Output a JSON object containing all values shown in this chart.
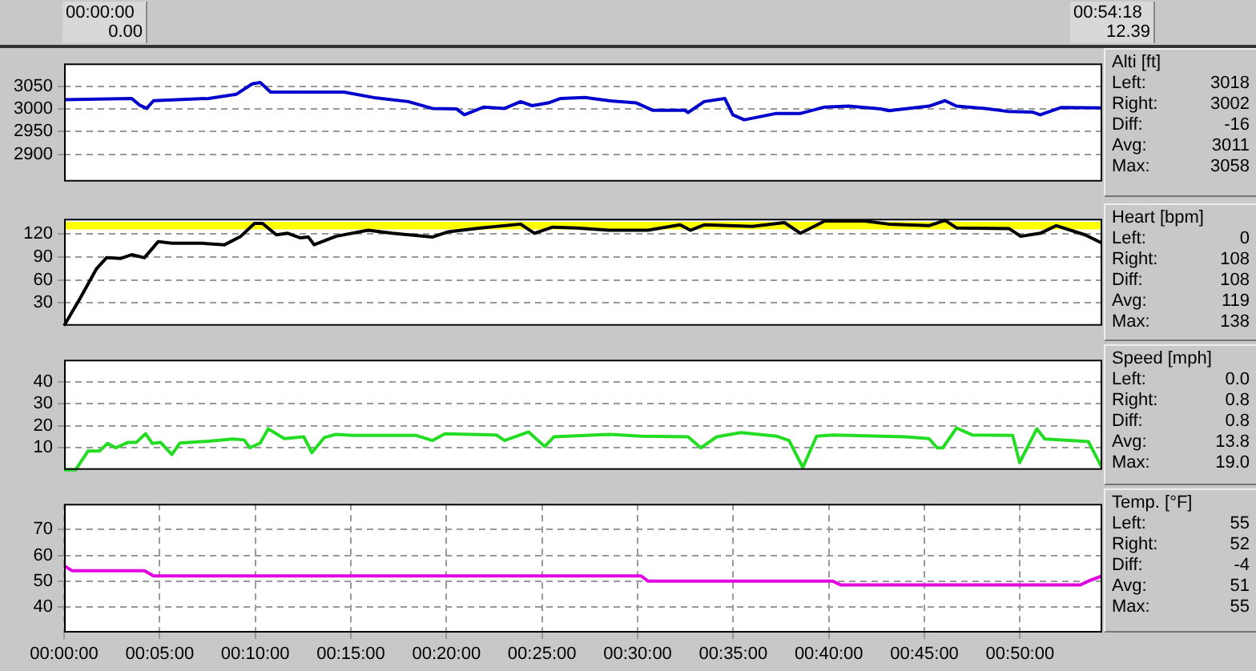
{
  "chart_data": [
    {
      "type": "other",
      "annotations": [
        "00:00:00",
        "0.00",
        "00:54:18",
        "12.39"
      ]
    },
    {
      "type": "line",
      "ylabel": "Alti [ft]",
      "color": "#0000cc",
      "grid": true,
      "tick_labels": "y",
      "xlim": [
        0,
        0.905
      ],
      "ylim": [
        2840,
        3100
      ],
      "yticks": [
        2900,
        2950,
        3000,
        3050
      ],
      "xticks": [
        {
          "value": 0,
          "label": null
        },
        {
          "value": 0.083333,
          "label": null
        },
        {
          "value": 0.166667,
          "label": null
        },
        {
          "value": 0.25,
          "label": null
        },
        {
          "value": 0.333333,
          "label": null
        },
        {
          "value": 0.416667,
          "label": null
        },
        {
          "value": 0.5,
          "label": null
        },
        {
          "value": 0.583333,
          "label": null
        },
        {
          "value": 0.666667,
          "label": null
        },
        {
          "value": 0.75,
          "label": null
        },
        {
          "value": 0.833333,
          "label": null
        }
      ],
      "x": [
        0,
        0.059,
        0.066,
        0.072,
        0.078,
        0.126,
        0.15,
        0.164,
        0.171,
        0.18,
        0.209,
        0.244,
        0.272,
        0.3,
        0.321,
        0.342,
        0.349,
        0.366,
        0.384,
        0.398,
        0.408,
        0.422,
        0.433,
        0.454,
        0.475,
        0.499,
        0.513,
        0.541,
        0.544,
        0.558,
        0.576,
        0.583,
        0.593,
        0.621,
        0.642,
        0.663,
        0.684,
        0.712,
        0.719,
        0.754,
        0.768,
        0.778,
        0.803,
        0.824,
        0.844,
        0.851,
        0.869,
        0.905
      ],
      "values": [
        3020,
        3023,
        3008,
        3001,
        3018,
        3023,
        3032,
        3055,
        3058,
        3037,
        3037,
        3037,
        3024,
        3016,
        3001,
        3000,
        2987,
        3004,
        3001,
        3016,
        3007,
        3013,
        3023,
        3025,
        3018,
        3013,
        2997,
        2997,
        2992,
        3016,
        3023,
        2987,
        2976,
        2990,
        2990,
        3004,
        3006,
        3000,
        2996,
        3006,
        3018,
        3006,
        3001,
        2994,
        2993,
        2987,
        3003,
        3002
      ],
      "annotations": [
        "Left:",
        "3018",
        "Right:",
        "3002",
        "Diff:",
        "-16",
        "Avg:",
        "3011",
        "Max:",
        "3058"
      ]
    },
    {
      "type": "line",
      "ylabel": "Heart [bpm]",
      "color": "#000000",
      "grid": true,
      "tick_labels": "y",
      "xlim": [
        0,
        0.905
      ],
      "ylim": [
        0,
        140
      ],
      "yticks": [
        30,
        60,
        90,
        120
      ],
      "xticks": [
        {
          "value": 0,
          "label": null
        },
        {
          "value": 0.083333,
          "label": null
        },
        {
          "value": 0.166667,
          "label": null
        },
        {
          "value": 0.25,
          "label": null
        },
        {
          "value": 0.333333,
          "label": null
        },
        {
          "value": 0.416667,
          "label": null
        },
        {
          "value": 0.5,
          "label": null
        },
        {
          "value": 0.583333,
          "label": null
        },
        {
          "value": 0.666667,
          "label": null
        },
        {
          "value": 0.75,
          "label": null
        },
        {
          "value": 0.833333,
          "label": null
        }
      ],
      "bands": [
        {
          "axis": "y",
          "from": 126,
          "to": 136,
          "color": "#ffff00"
        }
      ],
      "x": [
        0,
        0.014,
        0.028,
        0.037,
        0.049,
        0.059,
        0.07,
        0.082,
        0.094,
        0.119,
        0.14,
        0.154,
        0.166,
        0.173,
        0.185,
        0.195,
        0.206,
        0.213,
        0.218,
        0.237,
        0.265,
        0.286,
        0.321,
        0.335,
        0.363,
        0.398,
        0.41,
        0.426,
        0.447,
        0.475,
        0.509,
        0.537,
        0.546,
        0.558,
        0.6,
        0.628,
        0.642,
        0.663,
        0.698,
        0.719,
        0.754,
        0.768,
        0.778,
        0.824,
        0.834,
        0.851,
        0.865,
        0.89,
        0.905
      ],
      "values": [
        0,
        36,
        74,
        89,
        88,
        93,
        89,
        110,
        108,
        108,
        106,
        117,
        134,
        134,
        119,
        121,
        115,
        116,
        106,
        117,
        125,
        121,
        116,
        123,
        128,
        133,
        121,
        129,
        128,
        125,
        125,
        132,
        125,
        132,
        130,
        135,
        121,
        137,
        137,
        133,
        131,
        138,
        128,
        127,
        117,
        121,
        131,
        119,
        108
      ],
      "annotations": [
        "Left:",
        "0",
        "Right:",
        "108",
        "Diff:",
        "108",
        "Avg:",
        "119",
        "Max:",
        "138"
      ]
    },
    {
      "type": "line",
      "ylabel": "Speed [mph]",
      "color": "#22dd22",
      "grid": true,
      "tick_labels": "y",
      "xlim": [
        0,
        0.905
      ],
      "ylim": [
        0,
        50
      ],
      "yticks": [
        10,
        20,
        30,
        40
      ],
      "xticks": [
        {
          "value": 0,
          "label": null
        },
        {
          "value": 0.083333,
          "label": null
        },
        {
          "value": 0.166667,
          "label": null
        },
        {
          "value": 0.25,
          "label": null
        },
        {
          "value": 0.333333,
          "label": null
        },
        {
          "value": 0.416667,
          "label": null
        },
        {
          "value": 0.5,
          "label": null
        },
        {
          "value": 0.583333,
          "label": null
        },
        {
          "value": 0.666667,
          "label": null
        },
        {
          "value": 0.75,
          "label": null
        },
        {
          "value": 0.833333,
          "label": null
        }
      ],
      "x": [
        0,
        0.01,
        0.021,
        0.031,
        0.038,
        0.045,
        0.056,
        0.063,
        0.071,
        0.077,
        0.084,
        0.094,
        0.101,
        0.126,
        0.147,
        0.157,
        0.162,
        0.171,
        0.178,
        0.192,
        0.209,
        0.216,
        0.227,
        0.237,
        0.251,
        0.307,
        0.321,
        0.332,
        0.377,
        0.384,
        0.405,
        0.419,
        0.427,
        0.475,
        0.503,
        0.544,
        0.555,
        0.569,
        0.59,
        0.621,
        0.632,
        0.644,
        0.656,
        0.67,
        0.733,
        0.754,
        0.761,
        0.766,
        0.778,
        0.792,
        0.827,
        0.833,
        0.848,
        0.855,
        0.879,
        0.893,
        0.905
      ],
      "values": [
        0,
        0,
        8.6,
        8.6,
        12,
        10,
        12.5,
        12.5,
        16.4,
        12,
        12.5,
        7,
        12.2,
        13,
        14,
        13.6,
        10,
        12.2,
        18.6,
        14.2,
        15,
        7.8,
        14.7,
        16.1,
        15.6,
        15.6,
        13.3,
        16.4,
        15.8,
        13.3,
        17.2,
        10.6,
        15,
        16.1,
        15.3,
        15,
        10,
        15,
        16.9,
        15.3,
        13.3,
        1.1,
        15.3,
        15.8,
        15,
        14.2,
        10,
        10,
        19,
        15.8,
        15.6,
        3.3,
        18.6,
        14,
        13.3,
        12.8,
        0.8
      ],
      "annotations": [
        "Left:",
        "0.0",
        "Right:",
        "0.8",
        "Diff:",
        "0.8",
        "Avg:",
        "13.8",
        "Max:",
        "19.0"
      ]
    },
    {
      "type": "line",
      "ylabel": "Temp. [°F]",
      "color": "#e000e0",
      "grid": true,
      "xlim": [
        0,
        0.905
      ],
      "ylim": [
        30,
        80
      ],
      "yticks": [
        40,
        50,
        60,
        70
      ],
      "xticks": [
        {
          "value": 0,
          "label": "00:00:00"
        },
        {
          "value": 0.083333,
          "label": "00:05:00"
        },
        {
          "value": 0.166667,
          "label": "00:10:00"
        },
        {
          "value": 0.25,
          "label": "00:15:00"
        },
        {
          "value": 0.333333,
          "label": "00:20:00"
        },
        {
          "value": 0.416667,
          "label": "00:25:00"
        },
        {
          "value": 0.5,
          "label": "00:30:00"
        },
        {
          "value": 0.583333,
          "label": "00:35:00"
        },
        {
          "value": 0.666667,
          "label": "00:40:00"
        },
        {
          "value": 0.75,
          "label": "00:45:00"
        },
        {
          "value": 0.833333,
          "label": "00:50:00"
        }
      ],
      "x": [
        0,
        0.007,
        0.07,
        0.078,
        0.503,
        0.509,
        0.67,
        0.677,
        0.886,
        0.893,
        0.905
      ],
      "values": [
        56,
        54,
        54,
        52,
        52,
        50,
        50,
        48.5,
        48.5,
        50,
        52
      ],
      "annotations": [
        "Left:",
        "55",
        "Right:",
        "52",
        "Diff:",
        "-4",
        "Avg:",
        "51",
        "Max:",
        "55"
      ]
    }
  ]
}
